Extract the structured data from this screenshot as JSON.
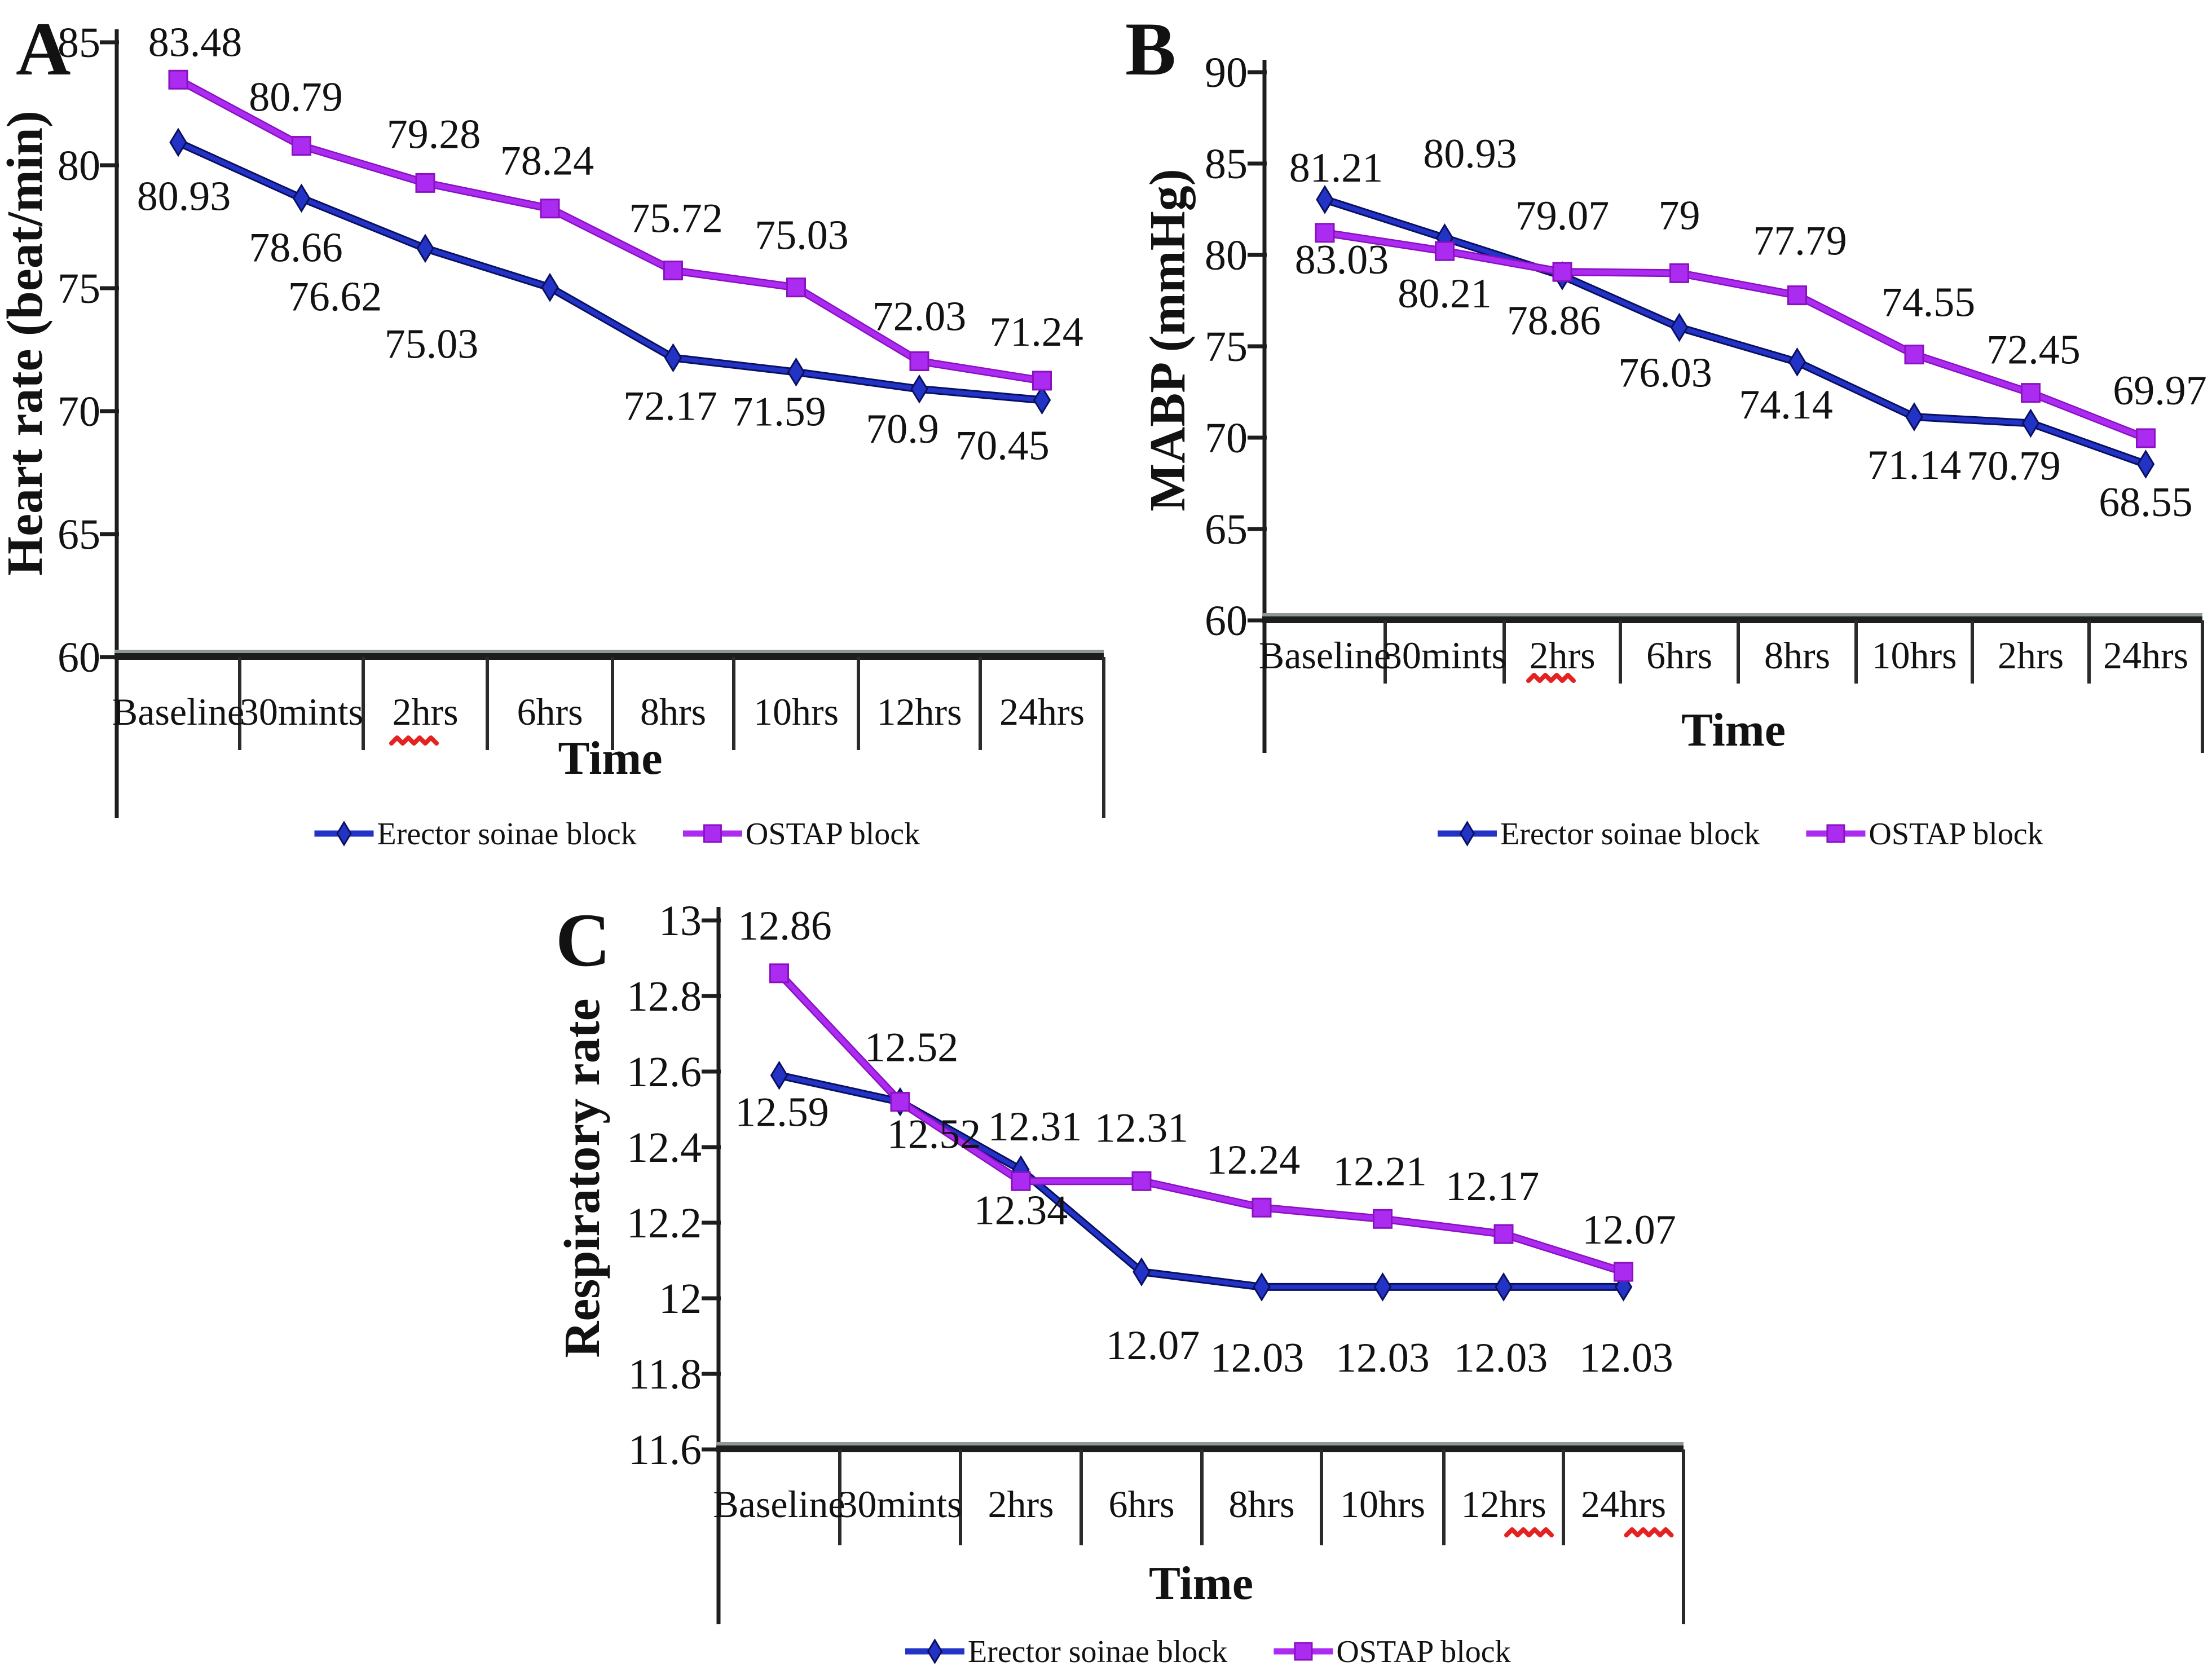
{
  "figure": {
    "background": "#ffffff",
    "legend": {
      "items": [
        {
          "label": "Erector soinae block",
          "marker": "diamond",
          "color": "#2333c6"
        },
        {
          "label": "OSTAP block",
          "marker": "square",
          "color": "#a22be8"
        }
      ]
    },
    "colors": {
      "series_blue": "#2333c6",
      "series_blue_dark": "#0a1060",
      "series_purple": "#ab2cf0",
      "series_purple_dark": "#8a10c0",
      "axis": "#1d1d1d",
      "axis_shadow": "#8e9898",
      "text": "#121212",
      "misspell_red": "#e52222"
    }
  },
  "chart_data": [
    {
      "panel": "A",
      "type": "line",
      "title": "",
      "xlabel": "Time",
      "ylabel": "Heart rate (beat/min)",
      "categories": [
        "Baseline",
        "30mints",
        "2hrs",
        "6hrs",
        "8hrs",
        "10hrs",
        "12hrs",
        "24hrs"
      ],
      "misspelled_category_indices": [
        2
      ],
      "ylim": [
        60,
        85
      ],
      "yticks": [
        "85",
        "80",
        "75",
        "70",
        "65",
        "60"
      ],
      "grid": false,
      "legend_position": "bottom",
      "series": [
        {
          "name": "Erector soinae block",
          "values": [
            80.93,
            78.66,
            76.62,
            75.03,
            72.17,
            71.59,
            70.9,
            70.45
          ]
        },
        {
          "name": "OSTAP block",
          "values": [
            83.48,
            80.79,
            79.28,
            78.24,
            75.72,
            75.03,
            72.03,
            71.24
          ]
        }
      ],
      "labels_above": [
        "83.48",
        "80.79",
        "79.28",
        "78.24",
        "75.72",
        "75.03",
        "72.03",
        "71.24"
      ],
      "labels_below": [
        "80.93",
        "78.66",
        "76.62",
        "75.03",
        "72.17",
        "71.59",
        "70.9",
        "70.45"
      ]
    },
    {
      "panel": "B",
      "type": "line",
      "title": "",
      "xlabel": "Time",
      "ylabel": "MABP (mmHg)",
      "categories": [
        "Baseline",
        "30mints",
        "2hrs",
        "6hrs",
        "8hrs",
        "10hrs",
        "2hrs",
        "24hrs"
      ],
      "misspelled_category_indices": [
        2
      ],
      "ylim": [
        60,
        90
      ],
      "yticks": [
        "90",
        "85",
        "80",
        "75",
        "70",
        "65",
        "60"
      ],
      "grid": false,
      "legend_position": "bottom",
      "series": [
        {
          "name": "Erector soinae block",
          "values": [
            83.03,
            80.93,
            78.86,
            76.03,
            74.14,
            71.14,
            70.79,
            68.55
          ]
        },
        {
          "name": "OSTAP block",
          "values": [
            81.21,
            80.21,
            79.07,
            79,
            77.79,
            74.55,
            72.45,
            69.97
          ]
        }
      ],
      "labels_above": [
        "81.21",
        "80.93",
        "79.07",
        "79",
        "77.79",
        "74.55",
        "72.45",
        "69.97"
      ],
      "labels_below": [
        "83.03",
        "80.21",
        "78.86",
        "76.03",
        "74.14",
        "71.14",
        "70.79",
        "68.55"
      ]
    },
    {
      "panel": "C",
      "type": "line",
      "title": "",
      "xlabel": "Time",
      "ylabel": "Respiratory rate",
      "categories": [
        "Baseline",
        "30mints",
        "2hrs",
        "6hrs",
        "8hrs",
        "10hrs",
        "12hrs",
        "24hrs"
      ],
      "misspelled_category_indices": [
        6,
        7
      ],
      "ylim": [
        11.6,
        13
      ],
      "yticks": [
        "13",
        "12.8",
        "12.6",
        "12.4",
        "12.2",
        "12",
        "11.8",
        "11.6"
      ],
      "grid": false,
      "legend_position": "bottom",
      "series": [
        {
          "name": "Erector soinae block",
          "values": [
            12.59,
            12.52,
            12.34,
            12.07,
            12.03,
            12.03,
            12.03,
            12.03
          ]
        },
        {
          "name": "OSTAP block",
          "values": [
            12.86,
            12.52,
            12.31,
            12.31,
            12.24,
            12.21,
            12.17,
            12.07
          ]
        }
      ],
      "labels_above": [
        "12.86",
        "12.52",
        "12.31",
        "12.31",
        "12.24",
        "12.21",
        "12.17",
        "12.07"
      ],
      "labels_below": [
        "12.59",
        "12.52",
        "12.34",
        "12.07",
        "12.03",
        "12.03",
        "12.03",
        "12.03"
      ]
    }
  ]
}
